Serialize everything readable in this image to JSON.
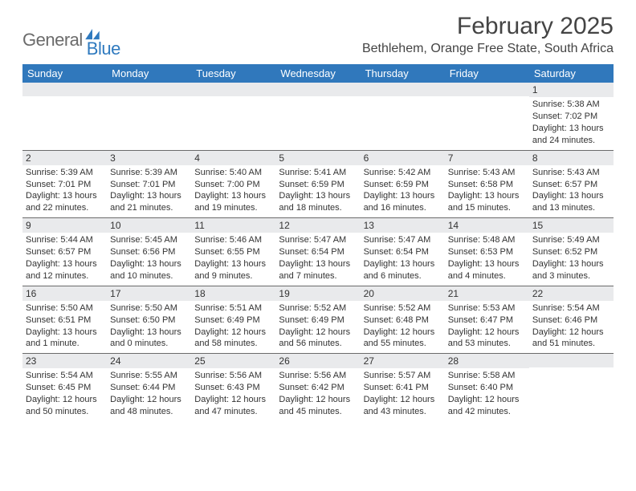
{
  "logo": {
    "word1": "General",
    "word2": "Blue"
  },
  "title": "February 2025",
  "location": "Bethlehem, Orange Free State, South Africa",
  "colors": {
    "header_bar": "#3078bc",
    "header_text": "#ffffff",
    "daynum_bg": "#e9eaec",
    "rule": "#6b6b6b",
    "title_text": "#444444",
    "logo_gray": "#6b6b6b",
    "logo_blue": "#2f7abf",
    "body_text": "#333333"
  },
  "daynames": [
    "Sunday",
    "Monday",
    "Tuesday",
    "Wednesday",
    "Thursday",
    "Friday",
    "Saturday"
  ],
  "weeks": [
    [
      {
        "empty": true
      },
      {
        "empty": true
      },
      {
        "empty": true
      },
      {
        "empty": true
      },
      {
        "empty": true
      },
      {
        "empty": true
      },
      {
        "n": "1",
        "sunrise": "Sunrise: 5:38 AM",
        "sunset": "Sunset: 7:02 PM",
        "daylight": "Daylight: 13 hours and 24 minutes."
      }
    ],
    [
      {
        "n": "2",
        "sunrise": "Sunrise: 5:39 AM",
        "sunset": "Sunset: 7:01 PM",
        "daylight": "Daylight: 13 hours and 22 minutes."
      },
      {
        "n": "3",
        "sunrise": "Sunrise: 5:39 AM",
        "sunset": "Sunset: 7:01 PM",
        "daylight": "Daylight: 13 hours and 21 minutes."
      },
      {
        "n": "4",
        "sunrise": "Sunrise: 5:40 AM",
        "sunset": "Sunset: 7:00 PM",
        "daylight": "Daylight: 13 hours and 19 minutes."
      },
      {
        "n": "5",
        "sunrise": "Sunrise: 5:41 AM",
        "sunset": "Sunset: 6:59 PM",
        "daylight": "Daylight: 13 hours and 18 minutes."
      },
      {
        "n": "6",
        "sunrise": "Sunrise: 5:42 AM",
        "sunset": "Sunset: 6:59 PM",
        "daylight": "Daylight: 13 hours and 16 minutes."
      },
      {
        "n": "7",
        "sunrise": "Sunrise: 5:43 AM",
        "sunset": "Sunset: 6:58 PM",
        "daylight": "Daylight: 13 hours and 15 minutes."
      },
      {
        "n": "8",
        "sunrise": "Sunrise: 5:43 AM",
        "sunset": "Sunset: 6:57 PM",
        "daylight": "Daylight: 13 hours and 13 minutes."
      }
    ],
    [
      {
        "n": "9",
        "sunrise": "Sunrise: 5:44 AM",
        "sunset": "Sunset: 6:57 PM",
        "daylight": "Daylight: 13 hours and 12 minutes."
      },
      {
        "n": "10",
        "sunrise": "Sunrise: 5:45 AM",
        "sunset": "Sunset: 6:56 PM",
        "daylight": "Daylight: 13 hours and 10 minutes."
      },
      {
        "n": "11",
        "sunrise": "Sunrise: 5:46 AM",
        "sunset": "Sunset: 6:55 PM",
        "daylight": "Daylight: 13 hours and 9 minutes."
      },
      {
        "n": "12",
        "sunrise": "Sunrise: 5:47 AM",
        "sunset": "Sunset: 6:54 PM",
        "daylight": "Daylight: 13 hours and 7 minutes."
      },
      {
        "n": "13",
        "sunrise": "Sunrise: 5:47 AM",
        "sunset": "Sunset: 6:54 PM",
        "daylight": "Daylight: 13 hours and 6 minutes."
      },
      {
        "n": "14",
        "sunrise": "Sunrise: 5:48 AM",
        "sunset": "Sunset: 6:53 PM",
        "daylight": "Daylight: 13 hours and 4 minutes."
      },
      {
        "n": "15",
        "sunrise": "Sunrise: 5:49 AM",
        "sunset": "Sunset: 6:52 PM",
        "daylight": "Daylight: 13 hours and 3 minutes."
      }
    ],
    [
      {
        "n": "16",
        "sunrise": "Sunrise: 5:50 AM",
        "sunset": "Sunset: 6:51 PM",
        "daylight": "Daylight: 13 hours and 1 minute."
      },
      {
        "n": "17",
        "sunrise": "Sunrise: 5:50 AM",
        "sunset": "Sunset: 6:50 PM",
        "daylight": "Daylight: 13 hours and 0 minutes."
      },
      {
        "n": "18",
        "sunrise": "Sunrise: 5:51 AM",
        "sunset": "Sunset: 6:49 PM",
        "daylight": "Daylight: 12 hours and 58 minutes."
      },
      {
        "n": "19",
        "sunrise": "Sunrise: 5:52 AM",
        "sunset": "Sunset: 6:49 PM",
        "daylight": "Daylight: 12 hours and 56 minutes."
      },
      {
        "n": "20",
        "sunrise": "Sunrise: 5:52 AM",
        "sunset": "Sunset: 6:48 PM",
        "daylight": "Daylight: 12 hours and 55 minutes."
      },
      {
        "n": "21",
        "sunrise": "Sunrise: 5:53 AM",
        "sunset": "Sunset: 6:47 PM",
        "daylight": "Daylight: 12 hours and 53 minutes."
      },
      {
        "n": "22",
        "sunrise": "Sunrise: 5:54 AM",
        "sunset": "Sunset: 6:46 PM",
        "daylight": "Daylight: 12 hours and 51 minutes."
      }
    ],
    [
      {
        "n": "23",
        "sunrise": "Sunrise: 5:54 AM",
        "sunset": "Sunset: 6:45 PM",
        "daylight": "Daylight: 12 hours and 50 minutes."
      },
      {
        "n": "24",
        "sunrise": "Sunrise: 5:55 AM",
        "sunset": "Sunset: 6:44 PM",
        "daylight": "Daylight: 12 hours and 48 minutes."
      },
      {
        "n": "25",
        "sunrise": "Sunrise: 5:56 AM",
        "sunset": "Sunset: 6:43 PM",
        "daylight": "Daylight: 12 hours and 47 minutes."
      },
      {
        "n": "26",
        "sunrise": "Sunrise: 5:56 AM",
        "sunset": "Sunset: 6:42 PM",
        "daylight": "Daylight: 12 hours and 45 minutes."
      },
      {
        "n": "27",
        "sunrise": "Sunrise: 5:57 AM",
        "sunset": "Sunset: 6:41 PM",
        "daylight": "Daylight: 12 hours and 43 minutes."
      },
      {
        "n": "28",
        "sunrise": "Sunrise: 5:58 AM",
        "sunset": "Sunset: 6:40 PM",
        "daylight": "Daylight: 12 hours and 42 minutes."
      },
      {
        "empty": true
      }
    ]
  ]
}
